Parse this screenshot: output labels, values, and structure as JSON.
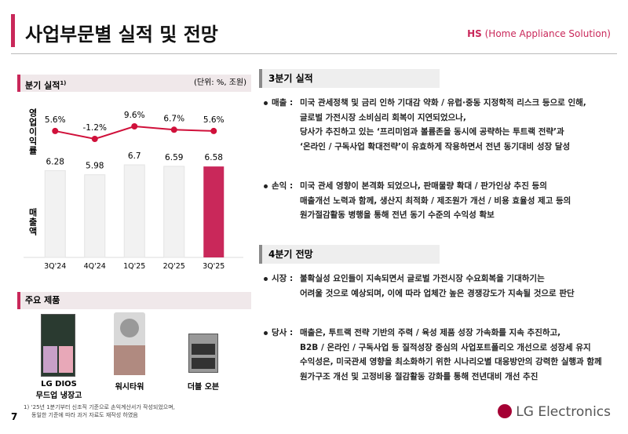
{
  "header": {
    "title": "사업부문별 실적 및 전망",
    "division": "HS",
    "division_full": "(Home Appliance Solution)"
  },
  "chart_panel": {
    "title": "분기 실적",
    "marker": "1)",
    "unit": "(단위: %, 조원)"
  },
  "chart_data": {
    "type": "bar",
    "categories": [
      "3Q'24",
      "4Q'24",
      "1Q'25",
      "2Q'25",
      "3Q'25"
    ],
    "series": [
      {
        "name": "매출액",
        "type": "bar",
        "color": "#f2f2f2",
        "highlight_color": "#c9285a",
        "values": [
          6.28,
          5.98,
          6.7,
          6.59,
          6.58
        ]
      },
      {
        "name": "영업이익률",
        "type": "line",
        "axis": "y2",
        "color": "#d0103a",
        "values": [
          5.6,
          -1.2,
          9.6,
          6.7,
          5.6
        ],
        "value_labels": [
          "5.6%",
          "-1.2%",
          "9.6%",
          "6.7%",
          "5.6%"
        ]
      }
    ]
  },
  "products": {
    "title": "주요 제품",
    "items": [
      {
        "lines": [
          "LG DIOS",
          "무드업 냉장고"
        ]
      },
      {
        "lines": [
          "워시타워"
        ]
      },
      {
        "lines": [
          "더블 오븐"
        ]
      }
    ]
  },
  "q3": {
    "title": "3분기 실적",
    "items": [
      {
        "label": "매출 :",
        "lines": [
          "미국 관세정책 및 금리 인하 기대감 약화 / 유럽·중동 지정학적 리스크 등으로 인해,",
          "글로벌 가전시장 소비심리 회복이 지연되었으나,",
          "당사가 추진하고 있는 ‘프리미엄과 볼륨존을 동시에 공략하는 투트랙 전략’과",
          "‘온라인 / 구독사업 확대전략’이 유효하게 작용하면서 전년 동기대비 성장 달성"
        ]
      },
      {
        "label": "손익 :",
        "lines": [
          "미국 관세 영향이 본격화 되었으나, 판매물량 확대 / 판가인상 추진 등의",
          "매출개선 노력과 함께, 생산지 최적화 / 제조원가 개선 / 비용 효율성 제고 등의",
          "원가절감활동 병행을 통해 전년 동기 수준의 수익성 확보"
        ]
      }
    ]
  },
  "q4": {
    "title": "4분기 전망",
    "items": [
      {
        "label": "시장 :",
        "lines": [
          "불확실성 요인들이 지속되면서 글로벌 가전시장 수요회복을 기대하기는",
          "어려울 것으로 예상되며, 이에 따라 업체간 높은 경쟁강도가 지속될 것으로 판단"
        ]
      },
      {
        "label": "당사 :",
        "lines": [
          "매출은, 투트랙 전략 기반의 주력 / 육성 제품 성장 가속화를 지속 추진하고,",
          "B2B / 온라인 / 구독사업 등 질적성장 중심의 사업포트폴리오 개선으로 성장세 유지",
          "수익성은, 미국관세 영향을 최소화하기 위한 시나리오별 대응방안의 강력한 실행과 함께",
          "원가구조 개선 및 고정비용 절감활동 강화를 통해 전년대비 개선 추진"
        ]
      }
    ]
  },
  "footnote": [
    "1) ‘25년 1분기부터 신조직 기준으로 손익계산서가 작성되었으며,",
    "동일한 기준에 따라 과거 자료도 재작성 하였음"
  ],
  "page_number": "7",
  "logo": "LG Electronics"
}
